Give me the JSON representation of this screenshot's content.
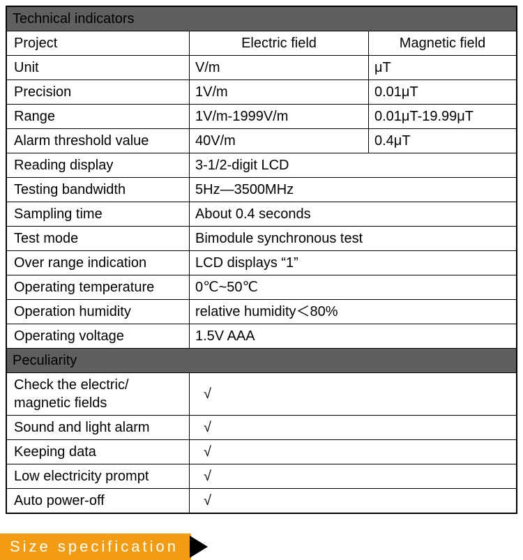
{
  "sections": {
    "tech": "Technical indicators",
    "pecu": "Peculiarity"
  },
  "colHeaders": {
    "project": "Project",
    "electric": "Electric field",
    "magnetic": "Magnetic field"
  },
  "rows3": {
    "unit": {
      "label": "Unit",
      "e": "V/m",
      "m": "μT"
    },
    "prec": {
      "label": "Precision",
      "e": "1V/m",
      "m": "0.01μT"
    },
    "range": {
      "label": "Range",
      "e": "1V/m-1999V/m",
      "m": "0.01μT-19.99μT"
    },
    "alarm": {
      "label": "Alarm threshold value",
      "e": "40V/m",
      "m": "0.4μT"
    }
  },
  "rows2": {
    "reading": {
      "label": "Reading display",
      "v": "3-1/2-digit LCD"
    },
    "band": {
      "label": "Testing bandwidth",
      "v": "5Hz—3500MHz"
    },
    "samp": {
      "label": "Sampling time",
      "v": "About 0.4 seconds"
    },
    "test": {
      "label": "Test mode",
      "v": "Bimodule synchronous test"
    },
    "over": {
      "label": "Over range indication",
      "v": "LCD displays “1”"
    },
    "temp": {
      "label": "Operating temperature",
      "v": "0℃~50℃"
    },
    "hum": {
      "label": "Operation humidity",
      "v": "relative humidity＜80%"
    },
    "volt": {
      "label": "Operating voltage",
      "v": "1.5V AAA"
    }
  },
  "features": {
    "f1": {
      "label": "Check the electric/\nmagnetic fields",
      "mark": "√"
    },
    "f2": {
      "label": "Sound and light alarm",
      "mark": "√"
    },
    "f3": {
      "label": "Keeping data",
      "mark": "√"
    },
    "f4": {
      "label": "Low electricity prompt",
      "mark": "√"
    },
    "f5": {
      "label": "Auto power-off",
      "mark": "√"
    }
  },
  "sizeSpec": "Size specification",
  "colors": {
    "headerBg": "#5f5f5f",
    "headerFg": "#ffffff",
    "border": "#000000",
    "sizeBg": "#f39c12",
    "sizeFg": "#ffffff",
    "arrow": "#000000"
  }
}
